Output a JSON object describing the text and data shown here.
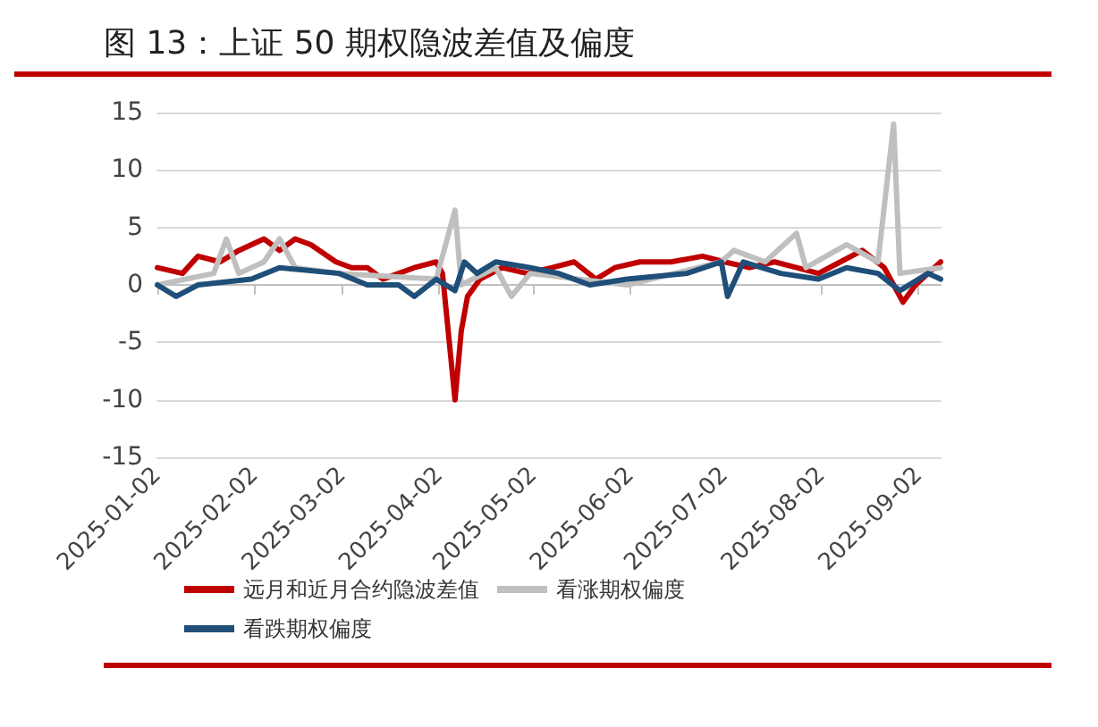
{
  "chart_data": {
    "type": "line",
    "title": "图 13：上证 50 期权隐波差值及偏度",
    "series": [
      {
        "name": "远月和近月合约隐波差值",
        "color": "#c00000",
        "x": [
          "2025-01-02",
          "2025-01-10",
          "2025-01-15",
          "2025-01-22",
          "2025-01-28",
          "2025-02-05",
          "2025-02-10",
          "2025-02-15",
          "2025-02-20",
          "2025-02-28",
          "2025-03-05",
          "2025-03-10",
          "2025-03-15",
          "2025-03-20",
          "2025-03-25",
          "2025-04-01",
          "2025-04-03",
          "2025-04-07",
          "2025-04-09",
          "2025-04-11",
          "2025-04-15",
          "2025-04-22",
          "2025-04-30",
          "2025-05-08",
          "2025-05-15",
          "2025-05-22",
          "2025-05-28",
          "2025-06-05",
          "2025-06-15",
          "2025-06-25",
          "2025-07-02",
          "2025-07-10",
          "2025-07-18",
          "2025-07-25",
          "2025-08-01",
          "2025-08-08",
          "2025-08-15",
          "2025-08-22",
          "2025-08-28",
          "2025-09-01",
          "2025-09-05",
          "2025-09-09"
        ],
        "values": [
          1.5,
          1,
          2.5,
          2,
          3,
          4,
          3,
          4,
          3.5,
          2,
          1.5,
          1.5,
          0.5,
          1,
          1.5,
          2,
          1,
          -10,
          -4,
          -1,
          0.5,
          1.5,
          1,
          1.5,
          2,
          0.5,
          1.5,
          2,
          2,
          2.5,
          2,
          1.5,
          2,
          1.5,
          1,
          2,
          3,
          1.5,
          -1.5,
          0,
          1,
          2
        ]
      },
      {
        "name": "看涨期权偏度",
        "color": "#bfbfbf",
        "x": [
          "2025-01-02",
          "2025-01-20",
          "2025-01-24",
          "2025-01-28",
          "2025-02-05",
          "2025-02-10",
          "2025-02-15",
          "2025-03-01",
          "2025-04-01",
          "2025-04-07",
          "2025-04-09",
          "2025-04-20",
          "2025-04-25",
          "2025-05-01",
          "2025-06-01",
          "2025-07-01",
          "2025-07-05",
          "2025-07-15",
          "2025-07-25",
          "2025-07-28",
          "2025-08-10",
          "2025-08-20",
          "2025-08-25",
          "2025-08-27",
          "2025-09-09"
        ],
        "values": [
          0,
          1,
          4,
          1,
          2,
          4,
          1.5,
          1,
          0.5,
          6.5,
          0,
          1.5,
          -1,
          1,
          0,
          2,
          3,
          2,
          4.5,
          1.5,
          3.5,
          2,
          14,
          1,
          1.5
        ]
      },
      {
        "name": "看跌期权偏度",
        "color": "#1f4e79",
        "x": [
          "2025-01-02",
          "2025-01-08",
          "2025-01-15",
          "2025-02-01",
          "2025-02-10",
          "2025-03-01",
          "2025-03-10",
          "2025-03-20",
          "2025-03-25",
          "2025-04-01",
          "2025-04-07",
          "2025-04-10",
          "2025-04-14",
          "2025-04-20",
          "2025-05-01",
          "2025-05-10",
          "2025-05-20",
          "2025-06-01",
          "2025-06-20",
          "2025-07-01",
          "2025-07-03",
          "2025-07-08",
          "2025-07-20",
          "2025-08-01",
          "2025-08-10",
          "2025-08-20",
          "2025-08-27",
          "2025-09-05",
          "2025-09-09"
        ],
        "values": [
          0,
          -1,
          0,
          0.5,
          1.5,
          1,
          0,
          0,
          -1,
          0.5,
          -0.5,
          2,
          1,
          2,
          1.5,
          1,
          0,
          0.5,
          1,
          2,
          -1,
          2,
          1,
          0.5,
          1.5,
          1,
          -0.5,
          1,
          0.5
        ]
      }
    ],
    "xlim": [
      "2025-01-02",
      "2025-09-09"
    ],
    "xticks": [
      "2025-01-02",
      "2025-02-02",
      "2025-03-02",
      "2025-04-02",
      "2025-05-02",
      "2025-06-02",
      "2025-07-02",
      "2025-08-02",
      "2025-09-02"
    ],
    "ylim": [
      -15,
      15
    ],
    "yticks": [
      -15,
      -10,
      -5,
      0,
      5,
      10,
      15
    ],
    "grid": "y",
    "legend": "bottom",
    "marker": "none",
    "line_style": "solid"
  }
}
